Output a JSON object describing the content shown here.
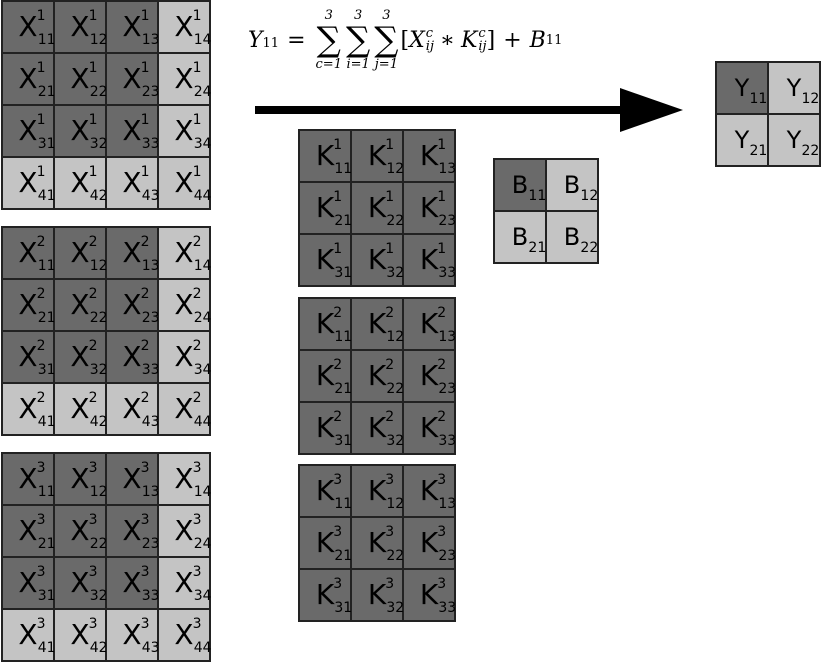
{
  "formula": {
    "lhs": "Y",
    "lhs_sub": "11",
    "eq": "=",
    "sums": [
      {
        "top": "3",
        "bottom": "c=1"
      },
      {
        "top": "3",
        "bottom": "i=1"
      },
      {
        "top": "3",
        "bottom": "j=1"
      }
    ],
    "open": "[",
    "x": "X",
    "x_sup": "c",
    "x_sub": "ij",
    "op": "∗",
    "k": "K",
    "k_sup": "c",
    "k_sub": "ij",
    "close": "]",
    "plus": "+",
    "b": "B",
    "b_sub": "11"
  },
  "x_matrices": [
    {
      "channel": "1",
      "symbol": "X"
    },
    {
      "channel": "2",
      "symbol": "X"
    },
    {
      "channel": "3",
      "symbol": "X"
    }
  ],
  "k_matrices": [
    {
      "channel": "1",
      "symbol": "K"
    },
    {
      "channel": "2",
      "symbol": "K"
    },
    {
      "channel": "3",
      "symbol": "K"
    }
  ],
  "x_indices": [
    [
      "11",
      "12",
      "13",
      "14"
    ],
    [
      "21",
      "22",
      "23",
      "24"
    ],
    [
      "31",
      "32",
      "33",
      "34"
    ],
    [
      "41",
      "42",
      "43",
      "44"
    ]
  ],
  "k_indices": [
    [
      "11",
      "12",
      "13"
    ],
    [
      "21",
      "22",
      "23"
    ],
    [
      "31",
      "32",
      "33"
    ]
  ],
  "b_matrix": {
    "symbol": "B",
    "indices": [
      [
        "11",
        "12"
      ],
      [
        "21",
        "22"
      ]
    ]
  },
  "y_matrix": {
    "symbol": "Y",
    "indices": [
      [
        "11",
        "12"
      ],
      [
        "21",
        "22"
      ]
    ]
  },
  "colors": {
    "dark": "#6a6a6a",
    "light": "#c4c4c4",
    "arrow": "#000000"
  }
}
